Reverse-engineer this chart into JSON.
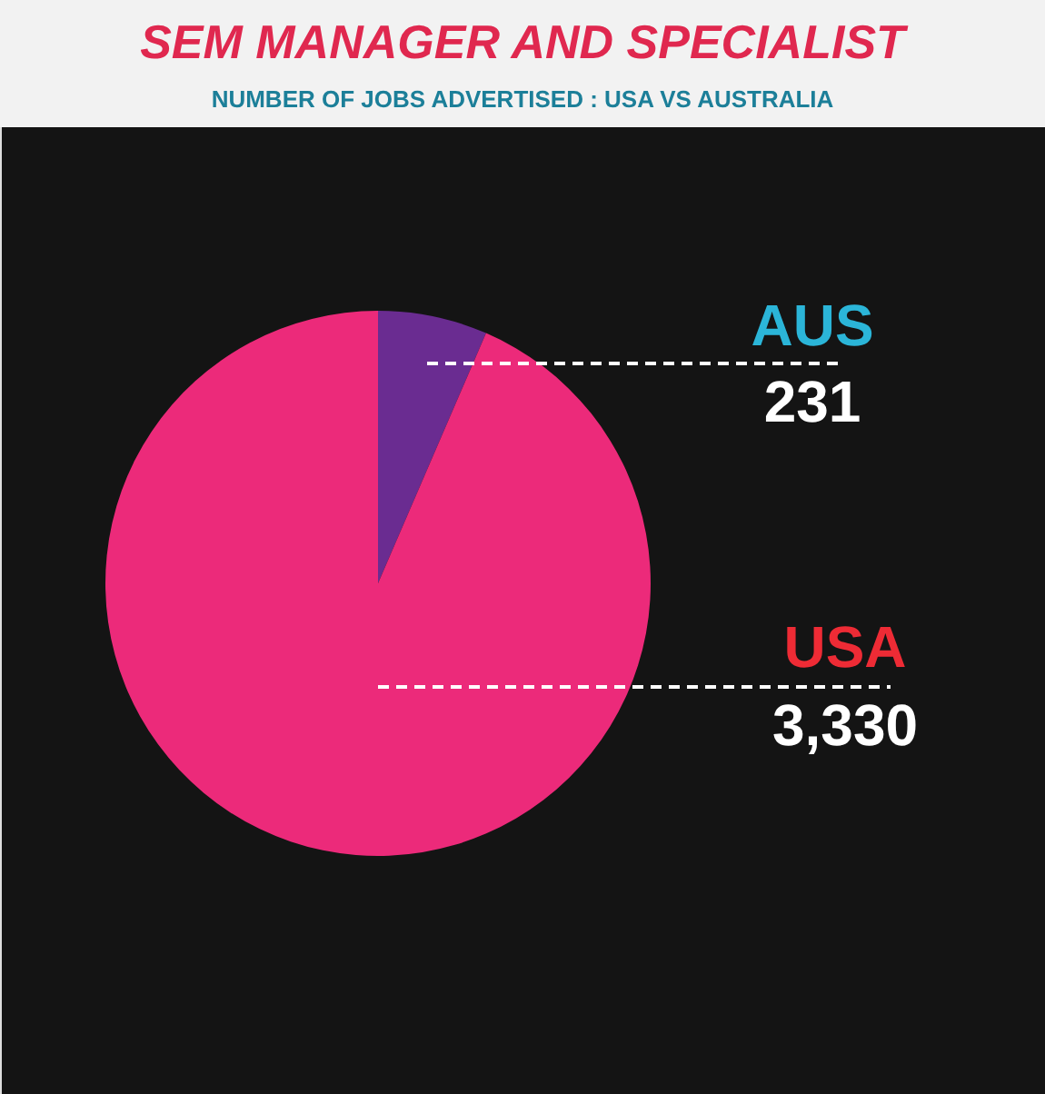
{
  "chart_data": {
    "type": "pie",
    "title": "SEM MANAGER AND SPECIALIST",
    "subtitle": "NUMBER OF JOBS ADVERTISED : USA VS AUSTRALIA",
    "categories": [
      "AUS",
      "USA"
    ],
    "values": [
      231,
      3330
    ],
    "colors": [
      "#6a2c91",
      "#ec2a7a"
    ],
    "value_labels": [
      "231",
      "3,330"
    ]
  }
}
